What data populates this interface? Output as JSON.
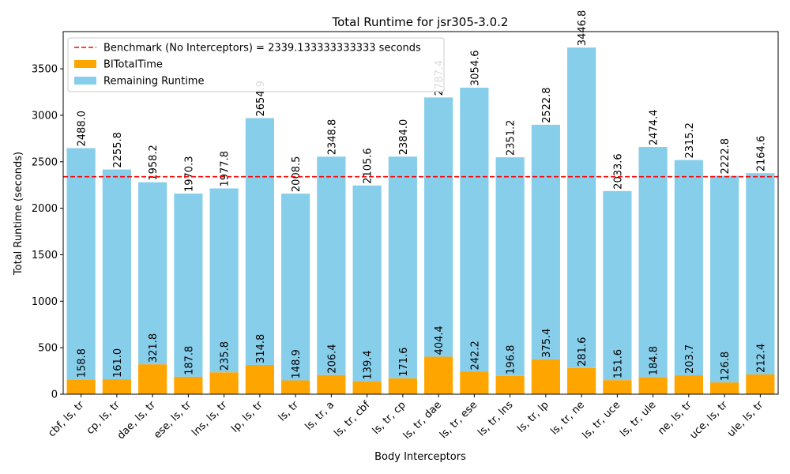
{
  "chart_data": {
    "type": "bar",
    "title": "Total Runtime for jsr305-3.0.2",
    "xlabel": "Body Interceptors",
    "ylabel": "Total Runtime (seconds)",
    "ylim": [
      0,
      3900
    ],
    "yticks": [
      0,
      500,
      1000,
      1500,
      2000,
      2500,
      3000,
      3500
    ],
    "grid": false,
    "legend_position": "top-left",
    "stacked": true,
    "categories": [
      "cbf, ls, tr",
      "cp, ls, tr",
      "dae, ls, tr",
      "ese, ls, tr",
      "lns, ls, tr",
      "lp, ls, tr",
      "ls, tr",
      "ls, tr, a",
      "ls, tr, cbf",
      "ls, tr, cp",
      "ls, tr, dae",
      "ls, tr, ese",
      "ls, tr, lns",
      "ls, tr, lp",
      "ls, tr, ne",
      "ls, tr, uce",
      "ls, tr, ule",
      "ne, ls, tr",
      "uce, ls, tr",
      "ule, ls, tr"
    ],
    "series": [
      {
        "name": "BITotalTime",
        "color": "#ffa500",
        "values": [
          158.8,
          161.0,
          321.8,
          187.8,
          235.8,
          314.8,
          148.9,
          206.4,
          139.4,
          171.6,
          404.4,
          242.2,
          196.8,
          375.4,
          281.6,
          151.6,
          184.8,
          203.7,
          126.8,
          212.4
        ],
        "labels": [
          "158.8",
          "161.0",
          "321.8",
          "187.8",
          "235.8",
          "314.8",
          "148.9",
          "206.4",
          "139.4",
          "171.6",
          "404.4",
          "242.2",
          "196.8",
          "375.4",
          "281.6",
          "151.6",
          "184.8",
          "203.7",
          "126.8",
          "212.4"
        ]
      },
      {
        "name": "Remaining Runtime",
        "color": "#87ceeb",
        "values": [
          2488.0,
          2255.8,
          1958.2,
          1970.3,
          1977.8,
          2654.9,
          2008.5,
          2348.8,
          2105.6,
          2384.0,
          2787.4,
          3054.6,
          2351.2,
          2522.8,
          3446.8,
          2033.6,
          2474.4,
          2315.2,
          2222.8,
          2164.6
        ],
        "labels": [
          "2488.0",
          "2255.8",
          "1958.2",
          "1970.3",
          "1977.8",
          "2654.9",
          "2008.5",
          "2348.8",
          "2105.6",
          "2384.0",
          "2787.4",
          "3054.6",
          "2351.2",
          "2522.8",
          "3446.8",
          "2033.6",
          "2474.4",
          "2315.2",
          "2222.8",
          "2164.6"
        ]
      }
    ],
    "benchmark": {
      "value": 2339.133333333333,
      "label": "Benchmark (No Interceptors) = 2339.133333333333 seconds",
      "color": "#ff0000"
    }
  }
}
